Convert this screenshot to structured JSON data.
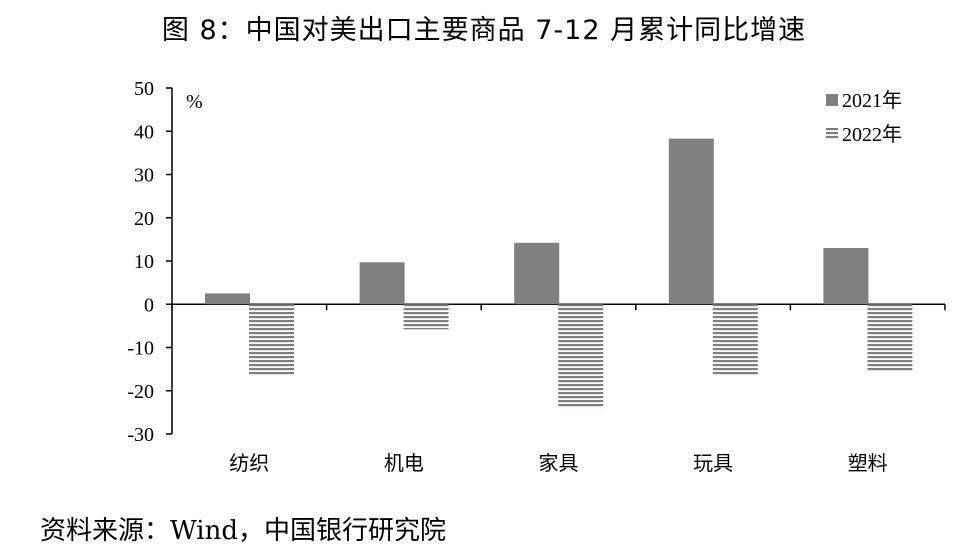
{
  "title": "图 8：中国对美出口主要商品 7-12 月累计同比增速",
  "source": "资料来源：Wind，中国银行研究院",
  "chart_data": {
    "type": "bar",
    "unit_label": "%",
    "categories": [
      "纺织",
      "机电",
      "家具",
      "玩具",
      "塑料"
    ],
    "series": [
      {
        "name": "2021年",
        "values": [
          2.5,
          9.7,
          14.2,
          38.3,
          13.0
        ],
        "color": "#808080",
        "pattern": "solid"
      },
      {
        "name": "2022年",
        "values": [
          -16.5,
          -5.8,
          -24.0,
          -16.5,
          -15.5
        ],
        "color": "#808080",
        "pattern": "horizontal-stripes"
      }
    ],
    "ylim": [
      -30,
      50
    ],
    "yticks": [
      50,
      40,
      30,
      20,
      10,
      0,
      -10,
      -20,
      -30
    ],
    "legend_position": "top-right",
    "grid": false
  }
}
